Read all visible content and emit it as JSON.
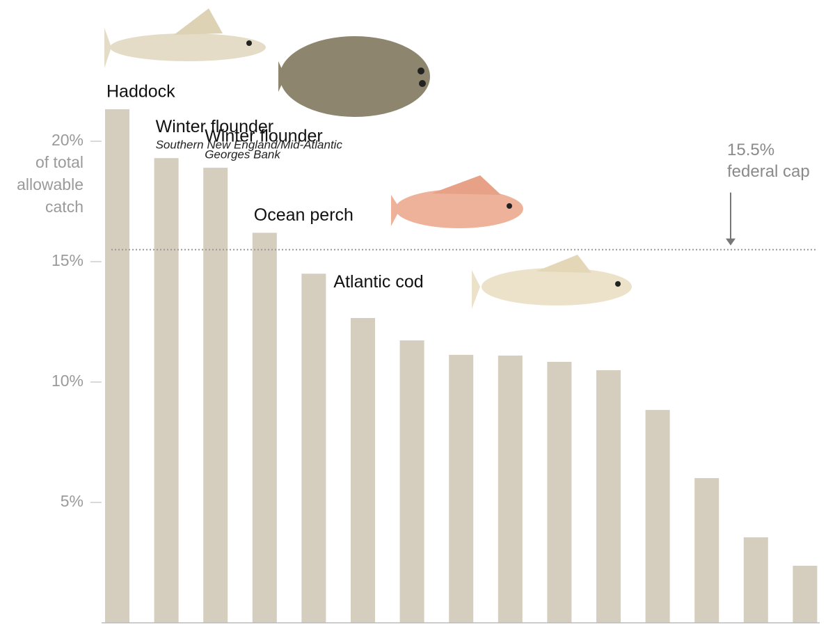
{
  "chart_data": {
    "type": "bar",
    "categories": [
      "Haddock",
      "Winter flounder",
      "Winter flounder",
      "Ocean perch",
      "Atlantic cod",
      null,
      null,
      null,
      null,
      null,
      null,
      null,
      null,
      null,
      null
    ],
    "category_notes": [
      null,
      "Southern New England/Mid-Atlantic",
      "Georges Bank",
      null,
      null,
      null,
      null,
      null,
      null,
      null,
      null,
      null,
      null,
      null,
      null
    ],
    "values": [
      21.33,
      19.3,
      18.9,
      16.2,
      14.5,
      12.66,
      11.73,
      11.13,
      11.1,
      10.84,
      10.49,
      8.84,
      6.01,
      3.55,
      2.37
    ],
    "color": "#d5cdbd",
    "ylim": [
      0,
      25
    ],
    "yticks": [
      {
        "value": 5,
        "label": "5%"
      },
      {
        "value": 10,
        "label": "10%"
      },
      {
        "value": 15,
        "label": "15%"
      },
      {
        "value": 20,
        "label": "20%"
      }
    ],
    "y_label_lines": [
      "of total",
      "allowable",
      "catch"
    ],
    "reference_line": {
      "value": 15.5,
      "label_lines": [
        "15.5%",
        "federal cap"
      ]
    }
  }
}
